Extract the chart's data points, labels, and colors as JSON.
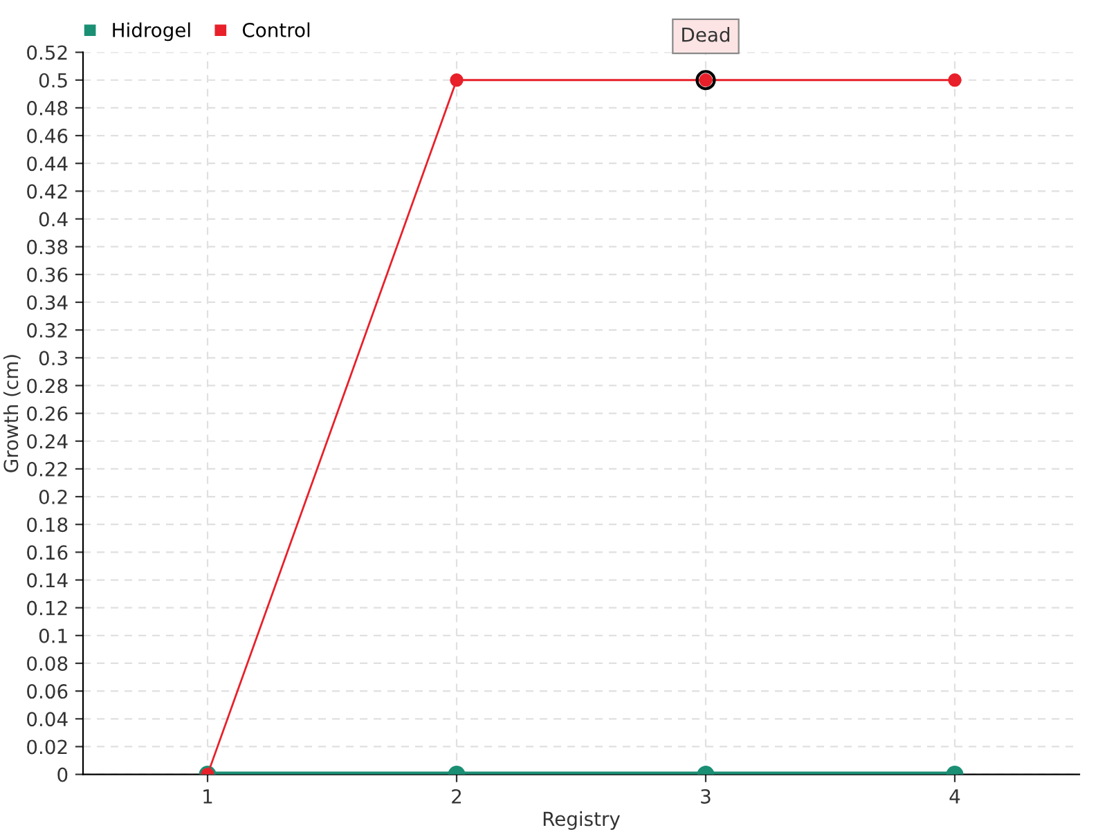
{
  "chart_data": {
    "type": "line",
    "xlabel": "Registry",
    "ylabel": "Growth (cm)",
    "categories": [
      "1",
      "2",
      "3",
      "4"
    ],
    "series": [
      {
        "name": "Hidrogel",
        "color": "#1b8f74",
        "values": [
          0,
          0,
          0,
          0
        ]
      },
      {
        "name": "Control",
        "color": "#e8202a",
        "values": [
          0,
          0.5,
          0.5,
          0.5
        ]
      }
    ],
    "ylim": [
      0,
      0.52
    ],
    "yticks": [
      0,
      0.02,
      0.04,
      0.06,
      0.08,
      0.1,
      0.12,
      0.14,
      0.16,
      0.18,
      0.2,
      0.22,
      0.24,
      0.26,
      0.28,
      0.3,
      0.32,
      0.34,
      0.36,
      0.38,
      0.4,
      0.42,
      0.44,
      0.46,
      0.48,
      0.5,
      0.52
    ],
    "annotations": [
      {
        "text": "Dead",
        "x": "3",
        "y": 0.5
      }
    ],
    "grid": true,
    "legend": "top left",
    "marker": "circle",
    "line_style": "solid"
  }
}
